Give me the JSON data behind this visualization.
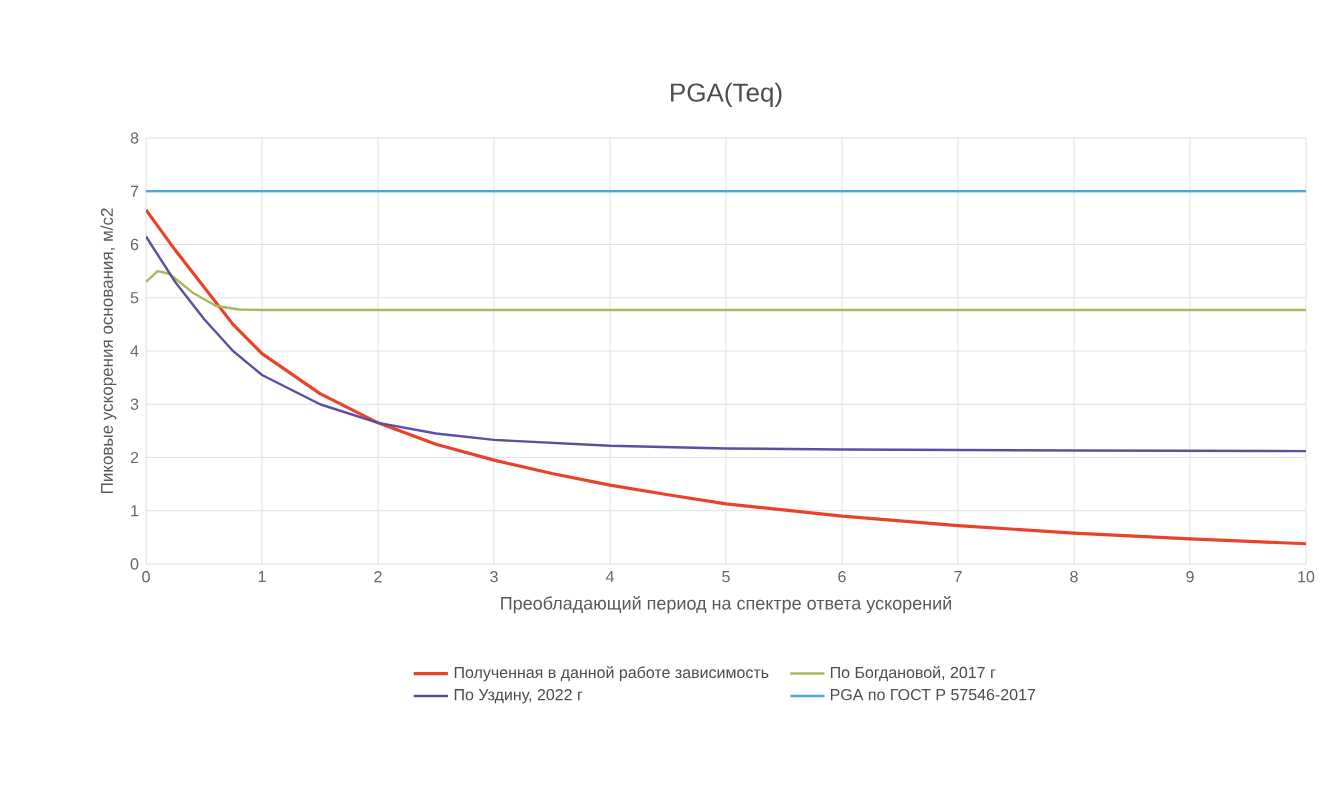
{
  "chart_data": {
    "type": "line",
    "title": "PGA(Teq)",
    "xlabel": "Преобладающий период на спектре ответа ускорений",
    "ylabel": "Пиковые ускорения основания, м/с2",
    "xlim": [
      0,
      10
    ],
    "xticks": [
      0,
      1,
      2,
      3,
      4,
      5,
      6,
      7,
      8,
      9,
      10
    ],
    "ylim": [
      0,
      8
    ],
    "yticks": [
      0,
      1,
      2,
      3,
      4,
      5,
      6,
      7,
      8
    ],
    "grid": true,
    "legend": "bottom",
    "marker": "none",
    "series": [
      {
        "name": "Полученная в данной работе зависимость",
        "color": "#e8432a",
        "x": [
          0,
          0.25,
          0.5,
          0.75,
          1,
          1.5,
          2,
          2.5,
          3,
          3.5,
          4,
          4.5,
          5,
          6,
          7,
          8,
          9,
          10
        ],
        "values": [
          6.65,
          5.9,
          5.2,
          4.5,
          3.95,
          3.2,
          2.65,
          2.25,
          1.95,
          1.7,
          1.48,
          1.3,
          1.13,
          0.9,
          0.72,
          0.58,
          0.47,
          0.38
        ]
      },
      {
        "name": "По Богдановой, 2017 г",
        "color": "#a8b85a",
        "x": [
          0,
          0.1,
          0.2,
          0.4,
          0.6,
          0.8,
          1,
          10
        ],
        "values": [
          5.3,
          5.5,
          5.45,
          5.1,
          4.85,
          4.78,
          4.77,
          4.77
        ]
      },
      {
        "name": "По Уздину, 2022 г",
        "color": "#5a4fa0",
        "x": [
          0,
          0.25,
          0.5,
          0.75,
          1,
          1.5,
          2,
          2.5,
          3,
          4,
          5,
          6,
          8,
          10
        ],
        "values": [
          6.15,
          5.3,
          4.6,
          4.0,
          3.55,
          3.0,
          2.65,
          2.45,
          2.33,
          2.22,
          2.17,
          2.15,
          2.13,
          2.12
        ]
      },
      {
        "name": "PGA по ГОСТ Р 57546-2017",
        "color": "#4aa8d8",
        "x": [
          0,
          10
        ],
        "values": [
          7,
          7
        ]
      }
    ]
  }
}
